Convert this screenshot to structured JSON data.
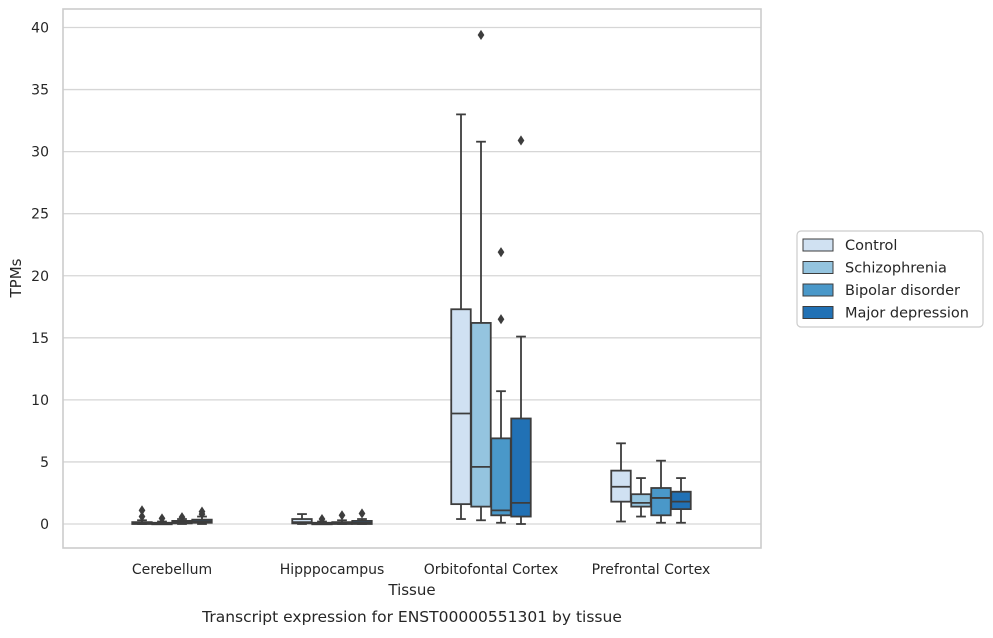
{
  "chart_data": {
    "type": "box",
    "xlabel": "Tissue",
    "ylabel": "TPMs",
    "caption": "Transcript expression for ENST00000551301 by tissue",
    "categories": [
      "Cerebellum",
      "Hipppocampus",
      "Orbitofontal Cortex",
      "Prefrontal Cortex"
    ],
    "ylim": [
      -1.9,
      41.5
    ],
    "yticks": [
      0,
      5,
      10,
      15,
      20,
      25,
      30,
      35,
      40
    ],
    "grid": true,
    "legend_placement": "right",
    "series": [
      {
        "name": "Control",
        "color": "#d0e1f2",
        "boxes": [
          {
            "category": "Cerebellum",
            "whisker_low": 0.0,
            "q1": 0.0,
            "median": 0.05,
            "q3": 0.15,
            "whisker_high": 0.3,
            "outliers": [
              0.6,
              1.1
            ]
          },
          {
            "category": "Hipppocampus",
            "whisker_low": 0.0,
            "q1": 0.05,
            "median": 0.15,
            "q3": 0.4,
            "whisker_high": 0.8,
            "outliers": []
          },
          {
            "category": "Orbitofontal Cortex",
            "whisker_low": 0.4,
            "q1": 1.6,
            "median": 8.9,
            "q3": 17.3,
            "whisker_high": 33.0,
            "outliers": []
          },
          {
            "category": "Prefrontal Cortex",
            "whisker_low": 0.2,
            "q1": 1.8,
            "median": 3.0,
            "q3": 4.3,
            "whisker_high": 6.5,
            "outliers": []
          }
        ]
      },
      {
        "name": "Schizophrenia",
        "color": "#94c4df",
        "boxes": [
          {
            "category": "Cerebellum",
            "whisker_low": 0.0,
            "q1": 0.0,
            "median": 0.05,
            "q3": 0.1,
            "whisker_high": 0.2,
            "outliers": [
              0.45
            ]
          },
          {
            "category": "Hipppocampus",
            "whisker_low": 0.0,
            "q1": 0.0,
            "median": 0.05,
            "q3": 0.1,
            "whisker_high": 0.2,
            "outliers": [
              0.4
            ]
          },
          {
            "category": "Orbitofontal Cortex",
            "whisker_low": 0.3,
            "q1": 1.4,
            "median": 4.6,
            "q3": 16.2,
            "whisker_high": 30.8,
            "outliers": [
              39.4
            ]
          },
          {
            "category": "Prefrontal Cortex",
            "whisker_low": 0.6,
            "q1": 1.4,
            "median": 1.7,
            "q3": 2.4,
            "whisker_high": 3.7,
            "outliers": []
          }
        ]
      },
      {
        "name": "Bipolar disorder",
        "color": "#4a98c9",
        "boxes": [
          {
            "category": "Cerebellum",
            "whisker_low": 0.0,
            "q1": 0.05,
            "median": 0.15,
            "q3": 0.25,
            "whisker_high": 0.4,
            "outliers": [
              0.55
            ]
          },
          {
            "category": "Hipppocampus",
            "whisker_low": 0.0,
            "q1": 0.0,
            "median": 0.05,
            "q3": 0.15,
            "whisker_high": 0.3,
            "outliers": [
              0.7
            ]
          },
          {
            "category": "Orbitofontal Cortex",
            "whisker_low": 0.1,
            "q1": 0.7,
            "median": 1.1,
            "q3": 6.9,
            "whisker_high": 10.7,
            "outliers": [
              16.5,
              21.9
            ]
          },
          {
            "category": "Prefrontal Cortex",
            "whisker_low": 0.1,
            "q1": 0.7,
            "median": 2.1,
            "q3": 2.9,
            "whisker_high": 5.1,
            "outliers": []
          }
        ]
      },
      {
        "name": "Major depression",
        "color": "#2171b5",
        "boxes": [
          {
            "category": "Cerebellum",
            "whisker_low": 0.0,
            "q1": 0.1,
            "median": 0.2,
            "q3": 0.35,
            "whisker_high": 0.6,
            "outliers": [
              0.8,
              1.0
            ]
          },
          {
            "category": "Hipppocampus",
            "whisker_low": 0.0,
            "q1": 0.0,
            "median": 0.1,
            "q3": 0.25,
            "whisker_high": 0.4,
            "outliers": [
              0.85
            ]
          },
          {
            "category": "Orbitofontal Cortex",
            "whisker_low": 0.0,
            "q1": 0.6,
            "median": 1.7,
            "q3": 8.5,
            "whisker_high": 15.1,
            "outliers": [
              30.9
            ]
          },
          {
            "category": "Prefrontal Cortex",
            "whisker_low": 0.1,
            "q1": 1.2,
            "median": 1.8,
            "q3": 2.6,
            "whisker_high": 3.7,
            "outliers": []
          }
        ]
      }
    ]
  }
}
